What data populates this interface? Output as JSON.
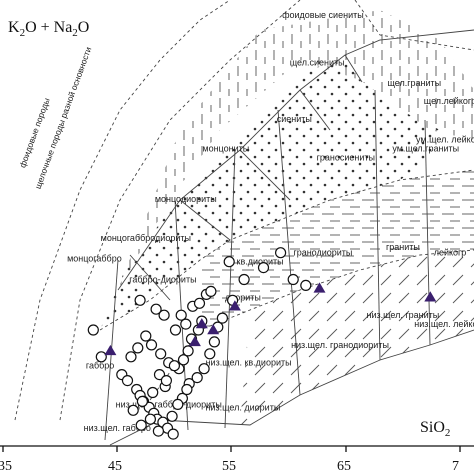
{
  "chart_data": {
    "type": "scatter",
    "title": "",
    "xlabel": "SiO₂",
    "ylabel": "K₂O + Na₂O",
    "xlim": [
      35,
      77
    ],
    "ylim": [
      0,
      15
    ],
    "x_ticks": [
      "35",
      "45",
      "55",
      "65",
      "7"
    ],
    "grid": false,
    "colors": {
      "circle_marker": "#111111",
      "triangle_marker": "#3a1f6e",
      "line": "#444444",
      "dot_fill": "#333333"
    },
    "field_labels": [
      {
        "text": "фоидовые сиениты",
        "x": 63.0,
        "y": 14.4
      },
      {
        "text": "щел.сиениты",
        "x": 62.5,
        "y": 12.8
      },
      {
        "text": "щел.граниты",
        "x": 71.0,
        "y": 12.1
      },
      {
        "text": "щел.лейкогр",
        "x": 74.5,
        "y": 11.5
      },
      {
        "text": "сиениты",
        "x": 60.5,
        "y": 10.9
      },
      {
        "text": "монцониты",
        "x": 54.5,
        "y": 9.9
      },
      {
        "text": "граносиениты",
        "x": 65.0,
        "y": 9.6
      },
      {
        "text": "ум.щел.граниты",
        "x": 72.0,
        "y": 9.9
      },
      {
        "text": "ум.щел. лейкогр",
        "x": 75.5,
        "y": 10.2
      },
      {
        "text": "монцодиориты",
        "x": 51.0,
        "y": 8.2
      },
      {
        "text": "монцогаббродиориты",
        "x": 47.5,
        "y": 6.9
      },
      {
        "text": "монцогаббро",
        "x": 43.0,
        "y": 6.2
      },
      {
        "text": "габбро-диориты",
        "x": 49.0,
        "y": 5.5
      },
      {
        "text": "кв.диориты",
        "x": 57.5,
        "y": 6.1
      },
      {
        "text": "гранодиориты",
        "x": 63.0,
        "y": 6.4
      },
      {
        "text": "граниты",
        "x": 70.0,
        "y": 6.6
      },
      {
        "text": "лейкогр",
        "x": 75.0,
        "y": 6.4
      },
      {
        "text": "диориты",
        "x": 56.0,
        "y": 4.9
      },
      {
        "text": "низ.щел. граниты",
        "x": 70.0,
        "y": 4.3
      },
      {
        "text": "низ.щел. лейкогр",
        "x": 75.0,
        "y": 4.0
      },
      {
        "text": "габбро",
        "x": 43.5,
        "y": 2.6
      },
      {
        "text": "низ.щел. кв.диориты",
        "x": 56.5,
        "y": 2.7
      },
      {
        "text": "низ.щел. гранодиориты",
        "x": 64.5,
        "y": 3.3
      },
      {
        "text": "низ.щел. диориты",
        "x": 56.0,
        "y": 1.2
      },
      {
        "text": "низ.щел. габбро-диориты",
        "x": 49.5,
        "y": 1.3
      },
      {
        "text": "низ.щел. габбро",
        "x": 45.0,
        "y": 0.5
      }
    ],
    "rotated_labels": [
      {
        "text": "фоидовые породы",
        "x": 38.0,
        "y": 10.5,
        "angle": -70
      },
      {
        "text": "щелочные породы разной основности",
        "x": 40.5,
        "y": 11.0,
        "angle": -70
      }
    ],
    "series": [
      {
        "marker": "circle",
        "x": [
          42.9,
          43.6,
          45.4,
          45.9,
          46.7,
          47.0,
          47.3,
          47.8,
          48.2,
          48.5,
          49.0,
          49.4,
          49.9,
          49.2,
          50.4,
          50.8,
          51.2,
          51.5,
          52.1,
          52.4,
          46.2,
          46.8,
          47.5,
          48.0,
          48.8,
          49.5,
          50.1,
          50.6,
          51.0,
          51.6,
          52.2,
          52.8,
          46.4,
          47.2,
          48.1,
          48.7,
          49.3,
          50.0,
          50.7,
          51.3,
          47.1,
          47.9,
          48.6,
          49.8,
          50.3,
          51.1,
          52.0,
          52.6,
          53.1,
          53.5,
          53.8,
          54.2,
          55.1,
          56.1,
          57.8,
          59.3,
          60.4,
          61.5,
          54.8,
          53.2,
          47.0,
          48.4,
          49.1
        ],
        "y": [
          3.9,
          3.0,
          2.4,
          2.2,
          1.9,
          1.7,
          1.5,
          1.3,
          1.1,
          0.9,
          0.8,
          0.6,
          0.4,
          2.0,
          2.6,
          2.9,
          3.2,
          3.6,
          3.9,
          4.2,
          3.0,
          3.3,
          3.7,
          3.4,
          3.1,
          2.8,
          3.9,
          4.4,
          4.1,
          4.7,
          4.8,
          5.1,
          1.2,
          1.5,
          1.8,
          2.4,
          2.2,
          2.7,
          1.6,
          2.1,
          0.7,
          0.9,
          0.5,
          1.0,
          1.4,
          1.9,
          2.3,
          2.6,
          3.1,
          3.5,
          4.0,
          4.3,
          4.9,
          5.6,
          6.0,
          6.5,
          5.6,
          5.4,
          6.2,
          5.2,
          4.9,
          4.6,
          4.4
        ]
      },
      {
        "marker": "triangle",
        "x": [
          44.4,
          51.8,
          52.4,
          53.4,
          55.3,
          62.7,
          72.4
        ],
        "y": [
          3.2,
          3.5,
          4.1,
          3.9,
          4.7,
          5.3,
          5.0
        ]
      }
    ]
  },
  "axis": {
    "y_title_main": "K",
    "y_title_sub1": "2",
    "y_title_mid": "O + Na",
    "y_title_sub2": "2",
    "y_title_end": "O",
    "x_title_main": "SiO",
    "x_title_sub": "2"
  }
}
